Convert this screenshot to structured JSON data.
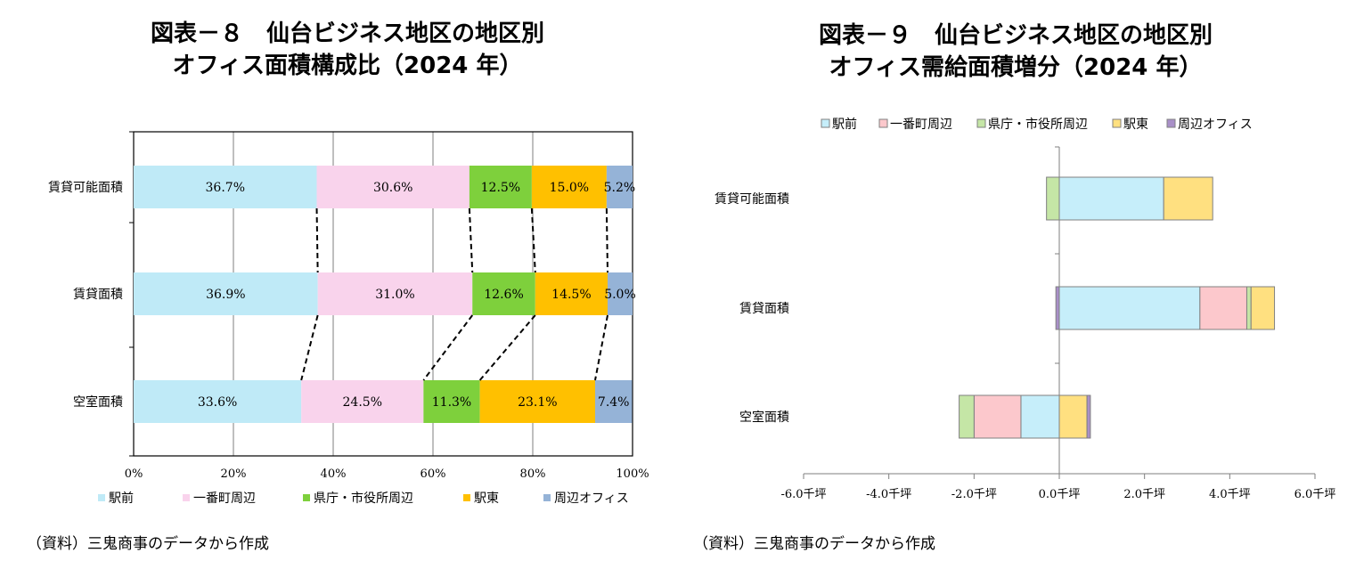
{
  "left": {
    "title_line1": "図表－８　仙台ビジネス地区の地区別",
    "title_line2": "オフィス面積構成比（2024 年）",
    "source": "（資料）三鬼商事のデータから作成"
  },
  "right": {
    "title_line1": "図表－９　仙台ビジネス地区の地区別",
    "title_line2": "オフィス需給面積増分（2024 年）",
    "source": "（資料）三鬼商事のデータから作成"
  },
  "chart_data": [
    {
      "type": "bar",
      "orientation": "horizontal",
      "stacked": "percent",
      "title": "図表－８　仙台ビジネス地区の地区別 オフィス面積構成比（2024 年）",
      "categories": [
        "賃貸可能面積",
        "賃貸面積",
        "空室面積"
      ],
      "series": [
        {
          "name": "駅前",
          "color": "#bfeaf7",
          "values": [
            36.7,
            36.9,
            33.6
          ],
          "labels": [
            "36.7%",
            "36.9%",
            "33.6%"
          ]
        },
        {
          "name": "一番町周辺",
          "color": "#f9d3ec",
          "values": [
            30.6,
            31.0,
            24.5
          ],
          "labels": [
            "30.6%",
            "31.0%",
            "24.5%"
          ]
        },
        {
          "name": "県庁・市役所周辺",
          "color": "#7ed03c",
          "values": [
            12.5,
            12.6,
            11.3
          ],
          "labels": [
            "12.5%",
            "12.6%",
            "11.3%"
          ]
        },
        {
          "name": "駅東",
          "color": "#ffc000",
          "values": [
            15.0,
            14.5,
            23.1
          ],
          "labels": [
            "15.0%",
            "14.5%",
            "23.1%"
          ]
        },
        {
          "name": "周辺オフィス",
          "color": "#95b3d7",
          "values": [
            5.2,
            5.0,
            7.4
          ],
          "labels": [
            "5.2%",
            "5.0%",
            "7.4%"
          ]
        }
      ],
      "xlim": [
        0,
        100
      ],
      "xticks": [
        "0%",
        "20%",
        "40%",
        "60%",
        "80%",
        "100%"
      ],
      "grid": true,
      "connector_lines": "dashed",
      "legend": "bottom"
    },
    {
      "type": "bar",
      "orientation": "horizontal",
      "stacked": true,
      "title": "図表－９　仙台ビジネス地区の地区別 オフィス需給面積増分（2024 年）",
      "categories": [
        "賃貸可能面積",
        "賃貸面積",
        "空室面積"
      ],
      "series": [
        {
          "name": "駅前",
          "color": "#c6eefa",
          "values": [
            2.45,
            3.3,
            -0.9
          ]
        },
        {
          "name": "一番町周辺",
          "color": "#fcc8cc",
          "values": [
            0.0,
            1.1,
            -1.1
          ]
        },
        {
          "name": "県庁・市役所周辺",
          "color": "#c5e6a6",
          "values": [
            -0.3,
            0.1,
            -0.35
          ]
        },
        {
          "name": "駅東",
          "color": "#ffe080",
          "values": [
            1.15,
            0.55,
            0.65
          ]
        },
        {
          "name": "周辺オフィス",
          "color": "#a990c8",
          "values": [
            0.0,
            -0.08,
            0.08
          ]
        }
      ],
      "xlim": [
        -6.0,
        6.0
      ],
      "xticks": [
        "-6.0千坪",
        "-4.0千坪",
        "-2.0千坪",
        "0.0千坪",
        "2.0千坪",
        "4.0千坪",
        "6.0千坪"
      ],
      "grid": false,
      "legend": "top"
    }
  ]
}
